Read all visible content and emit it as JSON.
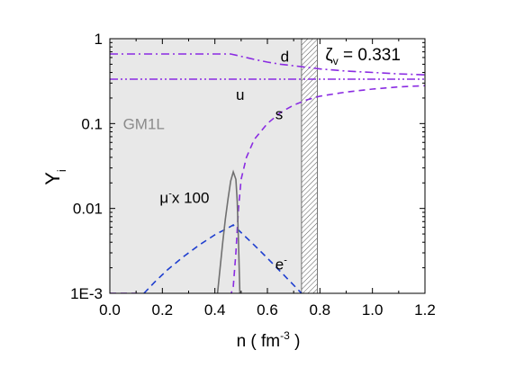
{
  "chart_data": {
    "type": "line",
    "xlabel": "n ( fm",
    "xlabel_sup": "-3",
    "xlabel_close": " )",
    "ylabel": "Y",
    "ylabel_sub": "i",
    "x_scale": "linear",
    "y_scale": "log",
    "xlim": [
      0.0,
      1.2
    ],
    "ylim": [
      0.001,
      1
    ],
    "x_ticks": [
      {
        "value": 0.0,
        "label": "0.0"
      },
      {
        "value": 0.2,
        "label": "0.2"
      },
      {
        "value": 0.4,
        "label": "0.4"
      },
      {
        "value": 0.6,
        "label": "0.6"
      },
      {
        "value": 0.8,
        "label": "0.8"
      },
      {
        "value": 1.0,
        "label": "1.0"
      },
      {
        "value": 1.2,
        "label": "1.2"
      }
    ],
    "y_ticks": [
      {
        "value": 1,
        "label": "1"
      },
      {
        "value": 0.1,
        "label": "0.1"
      },
      {
        "value": 0.01,
        "label": "0.01"
      },
      {
        "value": 0.001,
        "label": "1E-3"
      }
    ],
    "shaded_region": {
      "x": [
        0.0,
        0.73
      ],
      "color": "#e8e8e8"
    },
    "hatched_region": {
      "x": [
        0.73,
        0.79
      ]
    },
    "model_label": "GM1L",
    "zeta_label": {
      "symbol": "ζ",
      "sub": "v",
      "text": " = 0.331"
    },
    "series": [
      {
        "name": "d",
        "color": "#8a2be2",
        "dash": "dashdot",
        "points": [
          [
            0.0,
            0.66
          ],
          [
            0.3,
            0.66
          ],
          [
            0.46,
            0.66
          ],
          [
            0.5,
            0.62
          ],
          [
            0.55,
            0.57
          ],
          [
            0.6,
            0.53
          ],
          [
            0.65,
            0.5
          ],
          [
            0.7,
            0.48
          ],
          [
            0.75,
            0.46
          ],
          [
            0.8,
            0.44
          ],
          [
            0.9,
            0.415
          ],
          [
            1.0,
            0.4
          ],
          [
            1.1,
            0.385
          ],
          [
            1.2,
            0.375
          ]
        ]
      },
      {
        "name": "u",
        "color": "#8a2be2",
        "dash": "dashdotdot",
        "points": [
          [
            0.0,
            0.333
          ],
          [
            0.5,
            0.333
          ],
          [
            1.0,
            0.333
          ],
          [
            1.2,
            0.333
          ]
        ]
      },
      {
        "name": "s",
        "color": "#8a2be2",
        "dash": "dash",
        "points": [
          [
            0.0,
            0.001
          ],
          [
            0.1,
            0.001
          ],
          [
            0.14,
            0.00095
          ],
          [
            0.46,
            0.00095
          ],
          [
            0.47,
            0.0012
          ],
          [
            0.48,
            0.003
          ],
          [
            0.49,
            0.01
          ],
          [
            0.5,
            0.022
          ],
          [
            0.52,
            0.04
          ],
          [
            0.55,
            0.065
          ],
          [
            0.6,
            0.1
          ],
          [
            0.65,
            0.135
          ],
          [
            0.7,
            0.165
          ],
          [
            0.75,
            0.19
          ],
          [
            0.8,
            0.21
          ],
          [
            0.9,
            0.235
          ],
          [
            1.0,
            0.255
          ],
          [
            1.1,
            0.27
          ],
          [
            1.2,
            0.28
          ]
        ]
      },
      {
        "name": "e",
        "name_sup": "-",
        "color": "#1f3fcf",
        "dash": "dash",
        "points": [
          [
            0.13,
            0.001
          ],
          [
            0.17,
            0.00135
          ],
          [
            0.22,
            0.0019
          ],
          [
            0.28,
            0.0027
          ],
          [
            0.34,
            0.0037
          ],
          [
            0.4,
            0.0049
          ],
          [
            0.45,
            0.0059
          ],
          [
            0.47,
            0.0064
          ],
          [
            0.5,
            0.0052
          ],
          [
            0.55,
            0.0037
          ],
          [
            0.6,
            0.0026
          ],
          [
            0.65,
            0.0018
          ],
          [
            0.7,
            0.00125
          ],
          [
            0.73,
            0.001
          ]
        ]
      },
      {
        "name": "μ",
        "name_sup": "-",
        "name_suffix": "x 100",
        "color": "#707070",
        "dash": "solid",
        "points": [
          [
            0.41,
            0.001
          ],
          [
            0.42,
            0.002
          ],
          [
            0.43,
            0.004
          ],
          [
            0.44,
            0.0075
          ],
          [
            0.45,
            0.013
          ],
          [
            0.46,
            0.021
          ],
          [
            0.47,
            0.027
          ],
          [
            0.48,
            0.022
          ],
          [
            0.485,
            0.012
          ],
          [
            0.49,
            0.004
          ],
          [
            0.495,
            0.001
          ]
        ]
      }
    ],
    "curve_labels": [
      {
        "series": "d",
        "x": 0.65,
        "y": 0.62
      },
      {
        "series": "u",
        "x": 0.48,
        "y": 0.22
      },
      {
        "series": "s",
        "x": 0.63,
        "y": 0.13
      },
      {
        "series": "e",
        "x": 0.63,
        "y": 0.0022
      },
      {
        "series": "μ",
        "x": 0.19,
        "y": 0.0135
      }
    ],
    "legend": "none",
    "grid": false
  }
}
